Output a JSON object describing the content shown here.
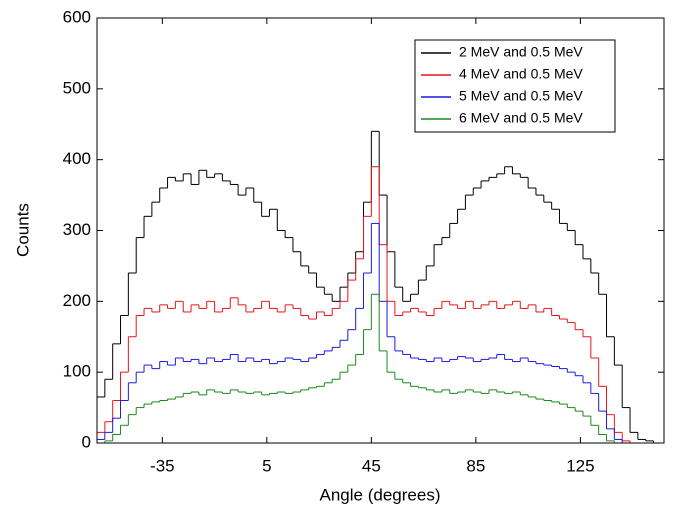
{
  "chart_data": {
    "type": "step-histogram",
    "xlabel": "Angle (degrees)",
    "ylabel": "Counts",
    "bins": [
      -60,
      -57,
      -54,
      -51,
      -48,
      -45,
      -42,
      -39,
      -36,
      -33,
      -30,
      -27,
      -24,
      -21,
      -18,
      -15,
      -12,
      -9,
      -6,
      -3,
      0,
      3,
      6,
      9,
      12,
      15,
      18,
      21,
      24,
      27,
      30,
      33,
      36,
      39,
      42,
      45,
      48,
      51,
      54,
      57,
      60,
      63,
      66,
      69,
      72,
      75,
      78,
      81,
      84,
      87,
      90,
      93,
      96,
      99,
      102,
      105,
      108,
      111,
      114,
      117,
      120,
      123,
      126,
      129,
      132,
      135,
      138,
      141,
      144,
      147,
      150,
      153,
      156
    ],
    "series": [
      {
        "name": "2 MeV and 0.5 MeV",
        "color": "#000000",
        "values": [
          65,
          90,
          140,
          180,
          240,
          290,
          320,
          340,
          360,
          375,
          370,
          380,
          365,
          385,
          375,
          380,
          370,
          365,
          350,
          360,
          340,
          320,
          330,
          300,
          290,
          270,
          250,
          240,
          220,
          210,
          200,
          220,
          240,
          270,
          340,
          440,
          350,
          270,
          220,
          200,
          210,
          230,
          250,
          280,
          290,
          310,
          330,
          350,
          360,
          370,
          375,
          380,
          390,
          380,
          375,
          360,
          350,
          340,
          330,
          310,
          300,
          280,
          260,
          240,
          210,
          150,
          110,
          50,
          15,
          5,
          3,
          0
        ]
      },
      {
        "name": "4 MeV and 0.5 MeV",
        "color": "#e8141c",
        "values": [
          15,
          30,
          60,
          100,
          150,
          180,
          190,
          185,
          195,
          190,
          200,
          185,
          195,
          190,
          200,
          185,
          190,
          205,
          195,
          185,
          190,
          200,
          190,
          185,
          195,
          190,
          180,
          175,
          185,
          180,
          190,
          200,
          230,
          260,
          320,
          390,
          280,
          200,
          180,
          185,
          190,
          185,
          180,
          190,
          200,
          195,
          190,
          200,
          190,
          195,
          200,
          190,
          195,
          200,
          190,
          195,
          185,
          190,
          180,
          175,
          170,
          160,
          150,
          120,
          80,
          40,
          15,
          3,
          0,
          0,
          0,
          0
        ]
      },
      {
        "name": "5 MeV and 0.5 MeV",
        "color": "#1a1ae0",
        "values": [
          5,
          15,
          35,
          60,
          85,
          100,
          110,
          105,
          115,
          110,
          120,
          115,
          118,
          112,
          120,
          115,
          118,
          125,
          115,
          120,
          115,
          118,
          112,
          115,
          120,
          118,
          115,
          120,
          125,
          130,
          135,
          145,
          160,
          190,
          240,
          310,
          200,
          150,
          130,
          125,
          120,
          118,
          115,
          120,
          115,
          118,
          122,
          120,
          115,
          118,
          120,
          125,
          118,
          115,
          120,
          115,
          112,
          110,
          108,
          105,
          100,
          95,
          85,
          70,
          45,
          20,
          5,
          0,
          0,
          0,
          0,
          0
        ]
      },
      {
        "name": "6 MeV and 0.5 MeV",
        "color": "#1a8a1a",
        "values": [
          0,
          3,
          12,
          25,
          40,
          50,
          55,
          58,
          60,
          62,
          65,
          70,
          72,
          68,
          75,
          72,
          70,
          75,
          72,
          70,
          72,
          68,
          70,
          72,
          70,
          72,
          75,
          78,
          80,
          85,
          90,
          100,
          110,
          125,
          160,
          210,
          130,
          100,
          90,
          85,
          80,
          78,
          75,
          72,
          75,
          70,
          72,
          75,
          72,
          70,
          75,
          72,
          70,
          72,
          68,
          65,
          62,
          60,
          58,
          55,
          50,
          45,
          38,
          25,
          12,
          3,
          0,
          0,
          0,
          0,
          0,
          0
        ]
      }
    ],
    "xlim": [
      -60,
      157
    ],
    "xticks": [
      -35,
      5,
      45,
      85,
      125
    ],
    "ylim": [
      0,
      600
    ],
    "yticks": [
      0,
      100,
      200,
      300,
      400,
      500,
      600
    ],
    "legend": "upper right"
  }
}
